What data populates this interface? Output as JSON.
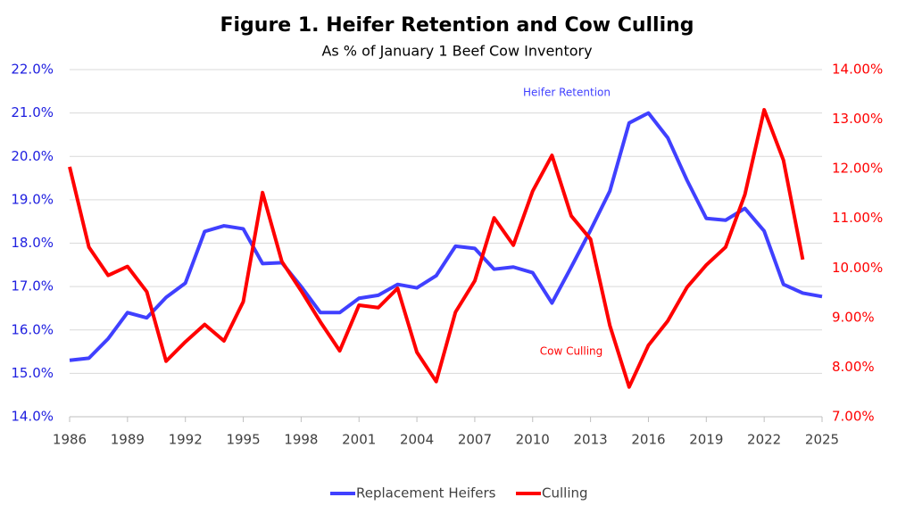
{
  "chart_data": {
    "type": "line",
    "title": "Figure 1. Heifer Retention and Cow Culling",
    "subtitle": "As % of January 1 Beef Cow Inventory",
    "annotations": [
      "Heifer Retention",
      "Cow Culling"
    ],
    "x": [
      1986,
      1987,
      1988,
      1989,
      1990,
      1991,
      1992,
      1993,
      1994,
      1995,
      1996,
      1997,
      1998,
      1999,
      2000,
      2001,
      2002,
      2003,
      2004,
      2005,
      2006,
      2007,
      2008,
      2009,
      2010,
      2011,
      2012,
      2013,
      2014,
      2015,
      2016,
      2017,
      2018,
      2019,
      2020,
      2021,
      2022,
      2023,
      2024,
      2025
    ],
    "series": [
      {
        "name": "Replacement Heifers",
        "color": "#4040ff",
        "axis": "y",
        "values": [
          15.3,
          15.35,
          15.8,
          16.4,
          16.28,
          16.75,
          17.08,
          18.27,
          18.4,
          18.33,
          17.53,
          17.55,
          17.0,
          16.4,
          16.4,
          16.73,
          16.8,
          17.05,
          16.97,
          17.25,
          17.93,
          17.88,
          17.4,
          17.45,
          17.32,
          16.62,
          17.45,
          18.3,
          19.2,
          20.77,
          21.0,
          20.43,
          19.45,
          18.57,
          18.53,
          18.8,
          18.28,
          17.05,
          16.85,
          16.77
        ]
      },
      {
        "name": "Culling",
        "color": "#ff0000",
        "axis": "y2",
        "values": [
          12.04,
          10.42,
          9.85,
          10.03,
          9.52,
          8.12,
          8.51,
          8.86,
          8.53,
          9.32,
          11.52,
          10.13,
          9.54,
          8.91,
          8.33,
          9.25,
          9.2,
          9.59,
          8.3,
          7.71,
          9.11,
          9.74,
          11.01,
          10.46,
          11.55,
          12.27,
          11.05,
          10.58,
          8.84,
          7.6,
          8.44,
          8.93,
          9.61,
          10.06,
          10.42,
          11.48,
          13.19,
          12.17,
          10.17,
          null
        ]
      }
    ],
    "xlim": [
      1986,
      2025
    ],
    "xticks": [
      1986,
      1989,
      1992,
      1995,
      1998,
      2001,
      2004,
      2007,
      2010,
      2013,
      2016,
      2019,
      2022,
      2025
    ],
    "ylim": [
      14,
      22
    ],
    "yticks": [
      {
        "value": 14,
        "label": "14.0%"
      },
      {
        "value": 15,
        "label": "15.0%"
      },
      {
        "value": 16,
        "label": "16.0%"
      },
      {
        "value": 17,
        "label": "17.0%"
      },
      {
        "value": 18,
        "label": "18.0%"
      },
      {
        "value": 19,
        "label": "19.0%"
      },
      {
        "value": 20,
        "label": "20.0%"
      },
      {
        "value": 21,
        "label": "21.0%"
      },
      {
        "value": 22,
        "label": "22.0%"
      }
    ],
    "y2lim": [
      7,
      14
    ],
    "y2ticks": [
      {
        "value": 7,
        "label": "7.00%"
      },
      {
        "value": 8,
        "label": "8.00%"
      },
      {
        "value": 9,
        "label": "9.00%"
      },
      {
        "value": 10,
        "label": "10.00%"
      },
      {
        "value": 11,
        "label": "11.00%"
      },
      {
        "value": 12,
        "label": "12.00%"
      },
      {
        "value": 13,
        "label": "13.00%"
      },
      {
        "value": 14,
        "label": "14.00%"
      }
    ],
    "y_color": "#2020e0",
    "y2_color": "#ff0000",
    "grid": true,
    "legend": "bottom"
  }
}
